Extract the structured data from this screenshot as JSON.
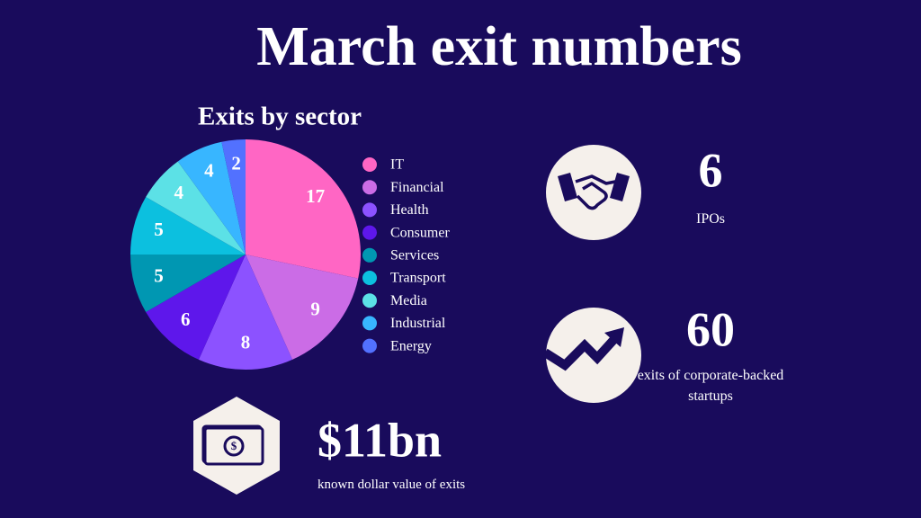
{
  "title": "March exit numbers",
  "chart_data": {
    "type": "pie",
    "title": "Exits by sector",
    "categories": [
      "IT",
      "Financial",
      "Health",
      "Consumer",
      "Services",
      "Transport",
      "Media",
      "Industrial",
      "Energy"
    ],
    "values": [
      17,
      9,
      8,
      6,
      5,
      5,
      4,
      4,
      2
    ],
    "colors": [
      "#ff66c4",
      "#cb6ce6",
      "#8c52ff",
      "#5e17eb",
      "#0097b2",
      "#0cc0df",
      "#5ce1e6",
      "#38b6ff",
      "#5271ff"
    ]
  },
  "stats": [
    {
      "value": 6,
      "label": "IPOs"
    },
    {
      "value": 60,
      "label": "exits of corporate-backed startups"
    },
    {
      "value": "$11bn",
      "label": "known dollar value of exits"
    }
  ]
}
